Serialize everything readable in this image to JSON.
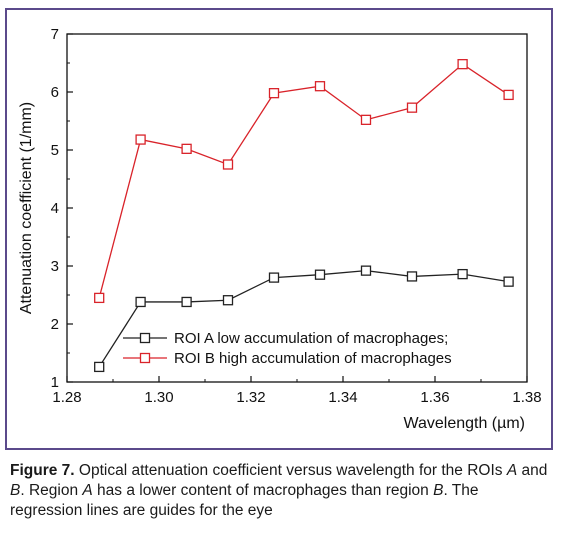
{
  "chart_data": {
    "type": "line",
    "xlabel": "Wavelength (µm)",
    "ylabel": "Attenuation coefficient (1/mm)",
    "xlim": [
      1.28,
      1.38
    ],
    "ylim": [
      1,
      7
    ],
    "x_ticks": [
      "1.28",
      "1.30",
      "1.32",
      "1.34",
      "1.36",
      "1.38"
    ],
    "y_ticks": [
      "1",
      "2",
      "3",
      "4",
      "5",
      "6",
      "7"
    ],
    "grid": false,
    "legend_position": "bottom-right",
    "series": [
      {
        "name": "ROI A low accumulation of macrophages;",
        "color": "#222222",
        "marker": "open-square",
        "x": [
          1.287,
          1.296,
          1.306,
          1.315,
          1.325,
          1.335,
          1.345,
          1.355,
          1.366,
          1.376
        ],
        "y": [
          1.26,
          2.38,
          2.38,
          2.41,
          2.8,
          2.85,
          2.92,
          2.82,
          2.86,
          2.73
        ]
      },
      {
        "name": "ROI B high accumulation of macrophages",
        "color": "#d9232a",
        "marker": "open-square",
        "x": [
          1.287,
          1.296,
          1.306,
          1.315,
          1.325,
          1.335,
          1.345,
          1.355,
          1.366,
          1.376
        ],
        "y": [
          2.45,
          5.18,
          5.02,
          4.75,
          5.98,
          6.1,
          5.52,
          5.73,
          6.48,
          5.95
        ]
      }
    ]
  },
  "caption": {
    "label": "Figure 7.",
    "text1": " Optical attenuation coefficient versus wavelength for the ROIs ",
    "a1": "A",
    "text2": " and ",
    "b1": "B",
    "text3": ". Region ",
    "a2": "A",
    "text4": " has a lower content of macrophages than region ",
    "b2": "B",
    "text5": ". The regression lines are guides for the eye"
  }
}
